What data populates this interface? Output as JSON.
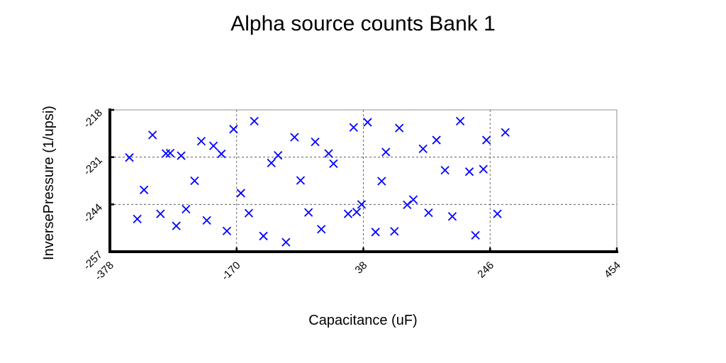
{
  "chart_data": {
    "type": "scatter",
    "title": "Alpha source counts Bank 1",
    "xlabel": "Capacitance (uF)",
    "ylabel": "InversePressure (1/upsi)",
    "xlim": [
      -378,
      454
    ],
    "ylim": [
      -257,
      -218
    ],
    "xticks": [
      "-378",
      "-170",
      "38",
      "246",
      "454"
    ],
    "yticks": [
      "-218",
      "-231",
      "-244",
      "-257"
    ],
    "grid": true,
    "marker": "x",
    "color": "#0000ff",
    "series": [
      {
        "points": [
          [
            -346,
            -231.1
          ],
          [
            -333,
            -248.0
          ],
          [
            -322,
            -240.0
          ],
          [
            -308,
            -224.9
          ],
          [
            -295,
            -246.6
          ],
          [
            -286,
            -230.0
          ],
          [
            -279,
            -229.9
          ],
          [
            -269,
            -249.9
          ],
          [
            -261,
            -230.6
          ],
          [
            -253,
            -245.3
          ],
          [
            -239,
            -237.5
          ],
          [
            -228,
            -226.6
          ],
          [
            -219,
            -248.4
          ],
          [
            -208,
            -227.9
          ],
          [
            -195,
            -230.1
          ],
          [
            -186,
            -251.3
          ],
          [
            -175,
            -223.3
          ],
          [
            -163,
            -240.9
          ],
          [
            -150,
            -246.4
          ],
          [
            -141,
            -221.1
          ],
          [
            -126,
            -252.7
          ],
          [
            -113,
            -232.6
          ],
          [
            -102,
            -230.5
          ],
          [
            -89,
            -254.4
          ],
          [
            -75,
            -225.5
          ],
          [
            -65,
            -237.4
          ],
          [
            -52,
            -246.2
          ],
          [
            -41,
            -226.8
          ],
          [
            -31,
            -250.8
          ],
          [
            -19,
            -230.0
          ],
          [
            -11,
            -232.8
          ],
          [
            13,
            -246.6
          ],
          [
            22,
            -222.8
          ],
          [
            27,
            -246.1
          ],
          [
            35,
            -244.0
          ],
          [
            45,
            -221.4
          ],
          [
            58,
            -251.6
          ],
          [
            68,
            -237.6
          ],
          [
            75,
            -229.6
          ],
          [
            89,
            -251.4
          ],
          [
            97,
            -223.0
          ],
          [
            110,
            -244.1
          ],
          [
            120,
            -242.7
          ],
          [
            136,
            -228.7
          ],
          [
            145,
            -246.3
          ],
          [
            158,
            -226.3
          ],
          [
            172,
            -234.6
          ],
          [
            184,
            -247.3
          ],
          [
            197,
            -221.1
          ],
          [
            212,
            -235.0
          ],
          [
            222,
            -252.5
          ],
          [
            235,
            -234.3
          ],
          [
            240,
            -226.3
          ],
          [
            258,
            -246.6
          ],
          [
            271,
            -224.2
          ]
        ]
      }
    ]
  }
}
